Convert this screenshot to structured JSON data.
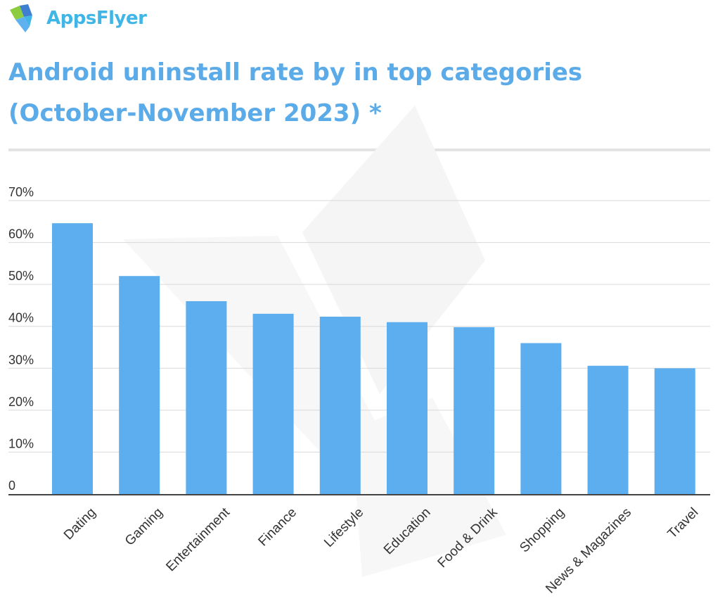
{
  "brand": {
    "name": "AppsFlyer",
    "colors": {
      "primary": "#41b6e6",
      "green": "#8ccd3f",
      "blue": "#3e7fd2"
    }
  },
  "header": {
    "title_line1": "Android uninstall rate by in top categories",
    "title_line2": "(October-November 2023) *"
  },
  "chart_data": {
    "type": "bar",
    "title": "Android uninstall rate by in top categories (October-November 2023) *",
    "xlabel": "",
    "ylabel": "",
    "categories": [
      "Dating",
      "Gaming",
      "Entertainment",
      "Finance",
      "Lifestyle",
      "Education",
      "Food & Drink",
      "Shopping",
      "News & Magazines",
      "Travel"
    ],
    "values": [
      64.6,
      52.0,
      46.0,
      43.0,
      42.3,
      41.0,
      39.8,
      36.0,
      30.6,
      30.0
    ],
    "unit": "%",
    "ylim": [
      0,
      70
    ],
    "yticks": [
      0,
      10,
      20,
      30,
      40,
      50,
      60,
      70
    ],
    "ytick_labels": [
      "0",
      "10%",
      "20%",
      "30%",
      "40%",
      "50%",
      "60%",
      "70%"
    ],
    "grid": true,
    "bar_color": "#5daeee"
  }
}
